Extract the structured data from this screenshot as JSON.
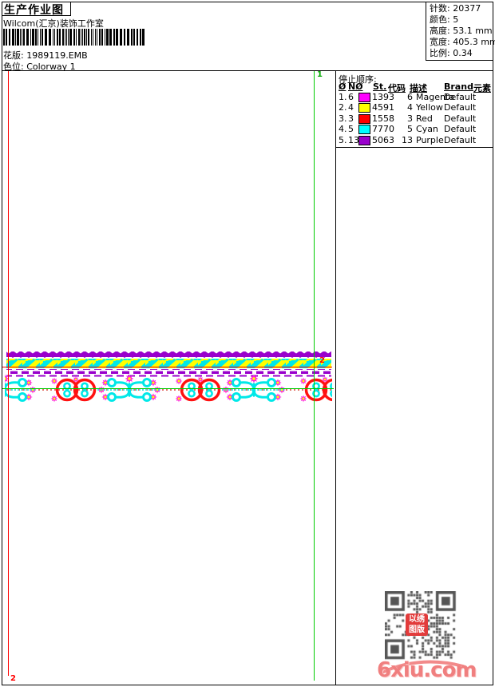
{
  "header": {
    "title": "生产作业图",
    "studio": "Wilcom(汇京)装饰工作室",
    "barcode_value": "1989119",
    "design_label": "花版:",
    "design_value": "1989119.EMB",
    "colorway_label": "色位:",
    "colorway_value": "Colorway 1"
  },
  "info_panel": {
    "rows": [
      {
        "label": "针数:",
        "value": "20377"
      },
      {
        "label": "颜色:",
        "value": "5"
      },
      {
        "label": "高度:",
        "value": "53.1 mm"
      },
      {
        "label": "宽度:",
        "value": "405.3 mm"
      },
      {
        "label": "比例:",
        "value": "0.34"
      }
    ]
  },
  "stop_sequence": {
    "title": "停止顺序:",
    "headers": [
      "Ø",
      "NØ",
      "St.",
      "代码",
      "描述",
      "Brand",
      "元素"
    ],
    "rows": [
      {
        "seq": "1.",
        "needle": "6",
        "swatch": "#ff00ff",
        "stitches": "1393",
        "code": "6",
        "description": "Magenta",
        "brand": "Default"
      },
      {
        "seq": "2.",
        "needle": "4",
        "swatch": "#ffff00",
        "stitches": "4591",
        "code": "4",
        "description": "Yellow",
        "brand": "Default"
      },
      {
        "seq": "3.",
        "needle": "3",
        "swatch": "#ff0000",
        "stitches": "1558",
        "code": "3",
        "description": "Red",
        "brand": "Default"
      },
      {
        "seq": "4.",
        "needle": "5",
        "swatch": "#00ffff",
        "stitches": "7770",
        "code": "5",
        "description": "Cyan",
        "brand": "Default"
      },
      {
        "seq": "5.",
        "needle": "13",
        "swatch": "#9900cc",
        "stitches": "5063",
        "code": "13",
        "description": "Purple",
        "brand": "Default"
      }
    ]
  },
  "design_area": {
    "start_marker": "1",
    "end_marker": "2",
    "colors": {
      "magenta": "#ff00ff",
      "yellow": "#ffff00",
      "red": "#ff1111",
      "cyan": "#00e8e8",
      "purple": "#9900cc",
      "guide_green": "#00cc00",
      "guide_red": "#ff0000"
    }
  },
  "watermark": {
    "site": "6xiu.com",
    "stamp_line1": "以绣",
    "stamp_line2": "图版"
  }
}
